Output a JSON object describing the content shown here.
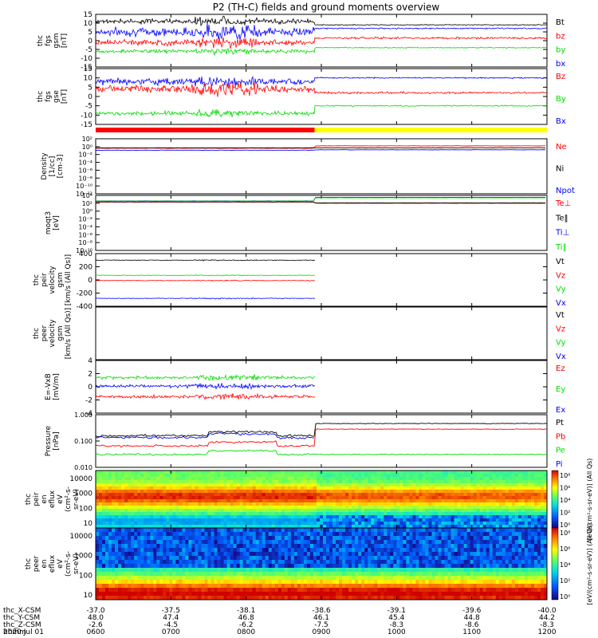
{
  "title": "P2 (TH-C) fields and ground moments overview",
  "chart_data": [
    {
      "id": "fgs_gsm",
      "type": "line",
      "ylabel": [
        "thc",
        "fgs",
        "gsm",
        "[nT]"
      ],
      "ylim": [
        -15,
        15
      ],
      "yticks": [
        -15,
        -10,
        -5,
        0,
        5,
        10,
        15
      ],
      "series": [
        {
          "name": "Bt",
          "color": "#000000",
          "level": 11,
          "level_after": 9,
          "noise": 2.0,
          "noise_after": 0.4
        },
        {
          "name": "bz",
          "color": "#ff0000",
          "level": -1,
          "level_after": 1.5,
          "noise": 2.5,
          "noise_after": 0.8
        },
        {
          "name": "by",
          "color": "#00dd00",
          "level": -6,
          "level_after": -4,
          "noise": 1.5,
          "noise_after": 0.4
        },
        {
          "name": "bx",
          "color": "#0000ff",
          "level": 5,
          "level_after": 7,
          "noise": 3.5,
          "noise_after": 0.5
        }
      ]
    },
    {
      "id": "fgs_gse",
      "type": "line",
      "ylabel": [
        "thc",
        "fgs",
        "gse",
        "[nT]"
      ],
      "ylim": [
        -15,
        15
      ],
      "yticks": [
        -15,
        -10,
        -5,
        0,
        5,
        10,
        15
      ],
      "series": [
        {
          "name": "Bz",
          "color": "#ff0000",
          "level": 4,
          "level_after": 2,
          "noise": 3.0,
          "noise_after": 0.8
        },
        {
          "name": "By",
          "color": "#00dd00",
          "level": -9,
          "level_after": -5,
          "noise": 1.5,
          "noise_after": 0.5
        },
        {
          "name": "Bx",
          "color": "#0000ff",
          "level": 8,
          "level_after": 10,
          "noise": 2.5,
          "noise_after": 0.5
        }
      ]
    },
    {
      "id": "density",
      "type": "line",
      "ylabel": [
        "Density",
        "[1/cc]",
        "[cm-3]"
      ],
      "yticks_label": [
        "10⁻¹²",
        "10⁻¹⁰",
        "10⁻⁸",
        "10⁻⁶",
        "10⁻⁴",
        "10⁻²",
        "10⁰",
        "10²"
      ],
      "ylim_exp": [
        -12,
        2
      ],
      "series": [
        {
          "name": "Ne",
          "color": "#ff0000"
        },
        {
          "name": "Ni",
          "color": "#000000"
        },
        {
          "name": "Npot",
          "color": "#0000ff"
        }
      ]
    },
    {
      "id": "temperature",
      "type": "line",
      "ylabel": [
        "moqt3",
        "[eV]"
      ],
      "yticks_label": [
        "10⁻¹⁰",
        "10⁻⁸",
        "10⁻⁶",
        "10⁻⁴",
        "10⁻²",
        "10⁰",
        "10²",
        "10⁴"
      ],
      "ylim_exp": [
        -10,
        4
      ],
      "series": [
        {
          "name": "Te⊥",
          "color": "#ff0000"
        },
        {
          "name": "Te‖",
          "color": "#000000"
        },
        {
          "name": "Ti⊥",
          "color": "#0000ff"
        },
        {
          "name": "Ti‖",
          "color": "#00dd00"
        }
      ]
    },
    {
      "id": "peir_velocity",
      "type": "line",
      "ylabel": [
        "thc",
        "peir",
        "velocity",
        "gsm",
        "[km/s (All Qs)]"
      ],
      "ylim": [
        -400,
        400
      ],
      "yticks": [
        -400,
        -200,
        0,
        200,
        400
      ],
      "series": [
        {
          "name": "Vt",
          "color": "#000000",
          "level": 300
        },
        {
          "name": "Vz",
          "color": "#ff0000",
          "level": -10
        },
        {
          "name": "Vy",
          "color": "#00dd00",
          "level": 70
        },
        {
          "name": "Vx",
          "color": "#0000ff",
          "level": -280
        }
      ]
    },
    {
      "id": "peer_velocity",
      "type": "line",
      "ylabel": [
        "thc",
        "peer",
        "velocity",
        "gsm",
        "[km/s (All Qs)]"
      ],
      "series": [
        {
          "name": "Vt",
          "color": "#000000"
        },
        {
          "name": "Vz",
          "color": "#ff0000"
        },
        {
          "name": "Vy",
          "color": "#00dd00"
        },
        {
          "name": "Vx",
          "color": "#0000ff"
        }
      ]
    },
    {
      "id": "efield",
      "type": "line",
      "ylabel": [
        "E=-VxB",
        "[mV/m]"
      ],
      "ylim": [
        -4,
        4
      ],
      "yticks": [
        -4,
        -2,
        0,
        2,
        4
      ],
      "series": [
        {
          "name": "Ez",
          "color": "#ff0000",
          "level": -1.5
        },
        {
          "name": "Ey",
          "color": "#00dd00",
          "level": 1.4
        },
        {
          "name": "Ex",
          "color": "#0000ff",
          "level": 0.1
        }
      ]
    },
    {
      "id": "pressure",
      "type": "line",
      "ylabel": [
        "Pressure",
        "[nPa]"
      ],
      "yticks_label": [
        "0.010",
        "0.100",
        "1.000"
      ],
      "ylim_log": [
        -2.3,
        0.15
      ],
      "series": [
        {
          "name": "Pt",
          "color": "#000000",
          "level": 0.15,
          "level_after": 0.55
        },
        {
          "name": "Pb",
          "color": "#ff0000",
          "level": 0.05,
          "level_after": 0.3
        },
        {
          "name": "Pe",
          "color": "#00dd00",
          "level": 0.02,
          "level_after": 0.02
        },
        {
          "name": "Pi",
          "color": "#0000ff",
          "level": 0.12,
          "level_after": 0.12
        }
      ]
    },
    {
      "id": "peir_eflux",
      "type": "heatmap",
      "ylabel": [
        "thc",
        "peir",
        "en",
        "eflux",
        "eV",
        "(cm²-s-",
        "sr-eV)"
      ],
      "yticks": [
        "10000",
        "1000",
        "100",
        "10"
      ]
    },
    {
      "id": "peer_eflux",
      "type": "heatmap",
      "ylabel": [
        "thc",
        "peer",
        "en",
        "eflux",
        "eV",
        "(cm²-s-",
        "sr-eV)"
      ],
      "yticks": [
        "10000",
        "1000",
        "100",
        "10"
      ]
    }
  ],
  "colorbars": [
    {
      "labels": [
        "10⁸",
        "10⁶",
        "10⁴",
        "10²",
        "10⁰"
      ],
      "title": "[eV/(cm²-s-sr-eV)] (All Qs)"
    },
    {
      "labels": [
        "10⁸",
        "10⁶",
        "10⁴",
        "10²",
        "10⁰"
      ],
      "title": "[eV/(cm²-s-sr-eV)] (All Qs)"
    }
  ],
  "x_axis": {
    "ticks": 7,
    "row_labels": [
      "thc_X-CSM",
      "thc_Y-CSM",
      "thc_Z-CSM",
      "hhmm"
    ],
    "rows": [
      [
        "-37.0",
        "-37.5",
        "-38.1",
        "-38.6",
        "-39.1",
        "-39.6",
        "-40.0"
      ],
      [
        "48.0",
        "47.4",
        "46.8",
        "46.1",
        "45.4",
        "44.8",
        "44.2"
      ],
      [
        "-2.6",
        "-4.5",
        "-6.2",
        "-7.5",
        "-8.3",
        "-8.6",
        "-8.3"
      ],
      [
        "0600",
        "0700",
        "0800",
        "0900",
        "1000",
        "1100",
        "1200"
      ]
    ],
    "date": "2020 Jul 01"
  },
  "mode_bar": {
    "colors": [
      "#ff0000",
      "#ffff00"
    ],
    "switch_fraction": 0.485
  }
}
